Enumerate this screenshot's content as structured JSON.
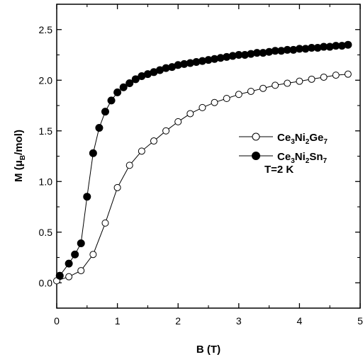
{
  "chart_data": {
    "type": "scatter",
    "xlabel": "B (T)",
    "ylabel_parts": {
      "pre": "M (",
      "mu": "μ",
      "sub": "B",
      "post": "/mol)"
    },
    "xlim": [
      0,
      5
    ],
    "ylim": [
      -0.25,
      2.75
    ],
    "x_ticks": [
      "0",
      "1",
      "2",
      "3",
      "4",
      "5"
    ],
    "y_ticks": [
      "0.0",
      "0.5",
      "1.0",
      "1.5",
      "2.0",
      "2.5"
    ],
    "x_tick_values": [
      0,
      1,
      2,
      3,
      4,
      5
    ],
    "y_tick_values": [
      0,
      0.5,
      1.0,
      1.5,
      2.0,
      2.5
    ],
    "annotation": "T=2 K",
    "legend_position": "right-middle",
    "series": [
      {
        "name": "Ce3Ni2Ge7",
        "label_parts": [
          [
            "Ce",
            ""
          ],
          [
            "3",
            "sub"
          ],
          [
            "Ni",
            ""
          ],
          [
            "2",
            "sub"
          ],
          [
            "Ge",
            ""
          ],
          [
            "7",
            "sub"
          ]
        ],
        "marker": "open-circle",
        "color": "#000000",
        "x": [
          0.0,
          0.2,
          0.4,
          0.6,
          0.8,
          1.0,
          1.2,
          1.4,
          1.6,
          1.8,
          2.0,
          2.2,
          2.4,
          2.6,
          2.8,
          3.0,
          3.2,
          3.4,
          3.6,
          3.8,
          4.0,
          4.2,
          4.4,
          4.6,
          4.8
        ],
        "y": [
          0.02,
          0.06,
          0.12,
          0.28,
          0.59,
          0.94,
          1.16,
          1.3,
          1.4,
          1.5,
          1.59,
          1.67,
          1.73,
          1.78,
          1.82,
          1.86,
          1.89,
          1.92,
          1.95,
          1.97,
          1.99,
          2.01,
          2.03,
          2.05,
          2.06
        ]
      },
      {
        "name": "Ce3Ni2Sn7",
        "label_parts": [
          [
            "Ce",
            ""
          ],
          [
            "3",
            "sub"
          ],
          [
            "Ni",
            ""
          ],
          [
            "2",
            "sub"
          ],
          [
            "Sn",
            ""
          ],
          [
            "7",
            "sub"
          ]
        ],
        "marker": "filled-circle",
        "color": "#000000",
        "x": [
          0.05,
          0.2,
          0.3,
          0.4,
          0.5,
          0.6,
          0.7,
          0.8,
          0.9,
          1.0,
          1.1,
          1.2,
          1.3,
          1.4,
          1.5,
          1.6,
          1.7,
          1.8,
          1.9,
          2.0,
          2.1,
          2.2,
          2.3,
          2.4,
          2.5,
          2.6,
          2.7,
          2.8,
          2.9,
          3.0,
          3.1,
          3.2,
          3.3,
          3.4,
          3.5,
          3.6,
          3.7,
          3.8,
          3.9,
          4.0,
          4.1,
          4.2,
          4.3,
          4.4,
          4.5,
          4.6,
          4.7,
          4.8
        ],
        "y": [
          0.07,
          0.19,
          0.28,
          0.39,
          0.85,
          1.28,
          1.53,
          1.69,
          1.8,
          1.88,
          1.93,
          1.97,
          2.01,
          2.04,
          2.06,
          2.08,
          2.1,
          2.12,
          2.13,
          2.15,
          2.16,
          2.17,
          2.18,
          2.19,
          2.2,
          2.21,
          2.22,
          2.23,
          2.24,
          2.25,
          2.25,
          2.26,
          2.27,
          2.27,
          2.28,
          2.29,
          2.29,
          2.3,
          2.3,
          2.31,
          2.31,
          2.32,
          2.32,
          2.33,
          2.33,
          2.34,
          2.34,
          2.35
        ]
      }
    ]
  }
}
